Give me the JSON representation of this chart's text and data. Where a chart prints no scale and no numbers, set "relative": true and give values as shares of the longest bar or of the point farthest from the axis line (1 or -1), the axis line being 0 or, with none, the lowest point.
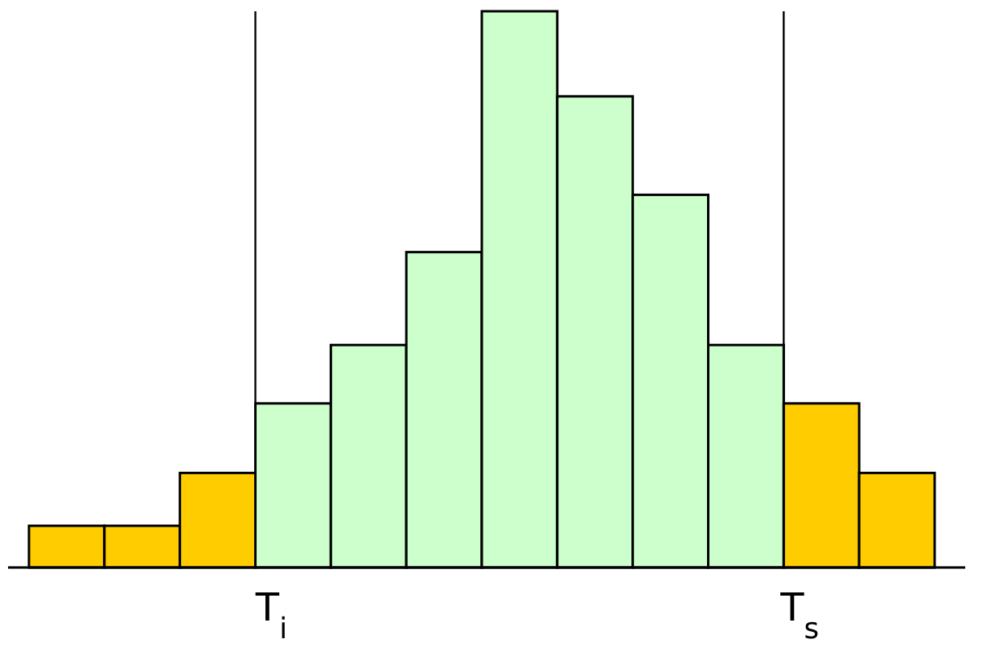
{
  "chart_data": {
    "type": "bar",
    "relative": true,
    "categories": [
      null,
      null,
      null,
      null,
      null,
      null,
      null,
      null,
      null,
      null,
      null,
      null
    ],
    "values": [
      0.075,
      0.075,
      0.17,
      0.295,
      0.4,
      0.567,
      1,
      0.847,
      0.67,
      0.4,
      0.295,
      0.17
    ],
    "colors": [
      "#ffcc00",
      "#ffcc00",
      "#ffcc00",
      "#ccffcc",
      "#ccffcc",
      "#ccffcc",
      "#ccffcc",
      "#ccffcc",
      "#ccffcc",
      "#ccffcc",
      "#ffcc00",
      "#ffcc00"
    ],
    "annotations": [
      "T$_{i}$",
      "T$_{s}$"
    ]
  }
}
